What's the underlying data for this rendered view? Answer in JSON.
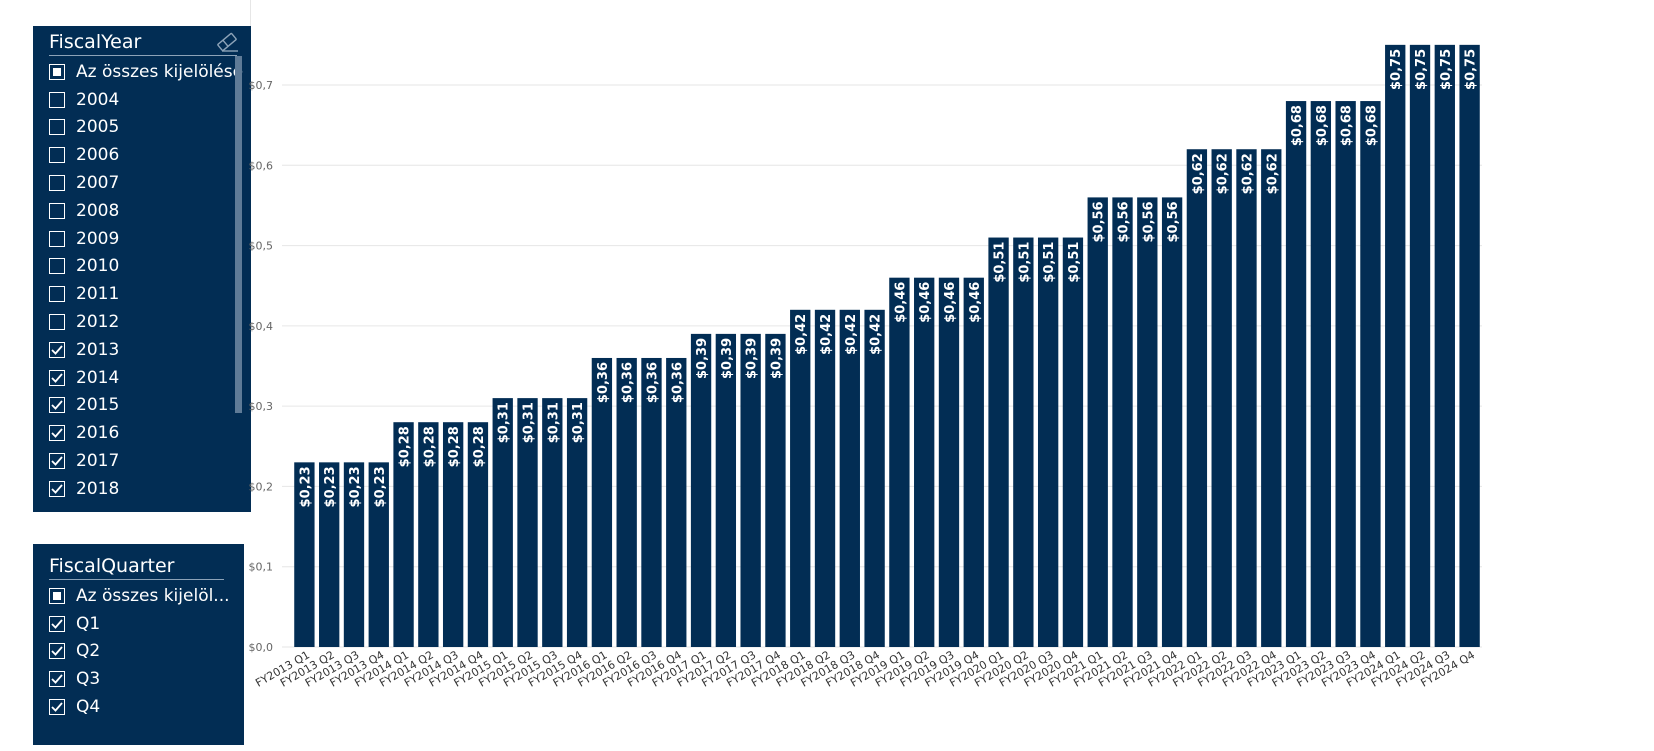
{
  "fiscal_year_slicer": {
    "title": "FiscalYear",
    "items": [
      {
        "label": "Az összes kijelölése",
        "state": "partial"
      },
      {
        "label": "2004",
        "state": "off"
      },
      {
        "label": "2005",
        "state": "off"
      },
      {
        "label": "2006",
        "state": "off"
      },
      {
        "label": "2007",
        "state": "off"
      },
      {
        "label": "2008",
        "state": "off"
      },
      {
        "label": "2009",
        "state": "off"
      },
      {
        "label": "2010",
        "state": "off"
      },
      {
        "label": "2011",
        "state": "off"
      },
      {
        "label": "2012",
        "state": "off"
      },
      {
        "label": "2013",
        "state": "on"
      },
      {
        "label": "2014",
        "state": "on"
      },
      {
        "label": "2015",
        "state": "on"
      },
      {
        "label": "2016",
        "state": "on"
      },
      {
        "label": "2017",
        "state": "on"
      },
      {
        "label": "2018",
        "state": "on"
      }
    ]
  },
  "fiscal_quarter_slicer": {
    "title": "FiscalQuarter",
    "items": [
      {
        "label": "Az összes kijelöl...",
        "state": "partial"
      },
      {
        "label": "Q1",
        "state": "on"
      },
      {
        "label": "Q2",
        "state": "on"
      },
      {
        "label": "Q3",
        "state": "on"
      },
      {
        "label": "Q4",
        "state": "on"
      }
    ]
  },
  "colors": {
    "bar": "#022d54",
    "slicer_bg": "#022d54",
    "grid": "#e6e6e6"
  },
  "chart_data": {
    "type": "bar",
    "title": "",
    "xlabel": "",
    "ylabel": "",
    "ylim": [
      0,
      0.7
    ],
    "yticks": [
      0,
      0.1,
      0.2,
      0.3,
      0.4,
      0.5,
      0.6,
      0.7
    ],
    "ytick_labels": [
      "$0,0",
      "$0,1",
      "$0,2",
      "$0,3",
      "$0,4",
      "$0,5",
      "$0,6",
      "$0,7"
    ],
    "categories": [
      "FY2013 Q1",
      "FY2013 Q2",
      "FY2013 Q3",
      "FY2013 Q4",
      "FY2014 Q1",
      "FY2014 Q2",
      "FY2014 Q3",
      "FY2014 Q4",
      "FY2015 Q1",
      "FY2015 Q2",
      "FY2015 Q3",
      "FY2015 Q4",
      "FY2016 Q1",
      "FY2016 Q2",
      "FY2016 Q3",
      "FY2016 Q4",
      "FY2017 Q1",
      "FY2017 Q2",
      "FY2017 Q3",
      "FY2017 Q4",
      "FY2018 Q1",
      "FY2018 Q2",
      "FY2018 Q3",
      "FY2018 Q4",
      "FY2019 Q1",
      "FY2019 Q2",
      "FY2019 Q3",
      "FY2019 Q4",
      "FY2020 Q1",
      "FY2020 Q2",
      "FY2020 Q3",
      "FY2020 Q4",
      "FY2021 Q1",
      "FY2021 Q2",
      "FY2021 Q3",
      "FY2021 Q4",
      "FY2022 Q1",
      "FY2022 Q2",
      "FY2022 Q3",
      "FY2022 Q4",
      "FY2023 Q1",
      "FY2023 Q2",
      "FY2023 Q3",
      "FY2023 Q4",
      "FY2024 Q1",
      "FY2024 Q2",
      "FY2024 Q3",
      "FY2024 Q4"
    ],
    "values": [
      0.23,
      0.23,
      0.23,
      0.23,
      0.28,
      0.28,
      0.28,
      0.28,
      0.31,
      0.31,
      0.31,
      0.31,
      0.36,
      0.36,
      0.36,
      0.36,
      0.39,
      0.39,
      0.39,
      0.39,
      0.42,
      0.42,
      0.42,
      0.42,
      0.46,
      0.46,
      0.46,
      0.46,
      0.51,
      0.51,
      0.51,
      0.51,
      0.56,
      0.56,
      0.56,
      0.56,
      0.62,
      0.62,
      0.62,
      0.62,
      0.68,
      0.68,
      0.68,
      0.68,
      0.75,
      0.75,
      0.75,
      0.75
    ],
    "data_labels": [
      "$0,23",
      "$0,23",
      "$0,23",
      "$0,23",
      "$0,28",
      "$0,28",
      "$0,28",
      "$0,28",
      "$0,31",
      "$0,31",
      "$0,31",
      "$0,31",
      "$0,36",
      "$0,36",
      "$0,36",
      "$0,36",
      "$0,39",
      "$0,39",
      "$0,39",
      "$0,39",
      "$0,42",
      "$0,42",
      "$0,42",
      "$0,42",
      "$0,46",
      "$0,46",
      "$0,46",
      "$0,46",
      "$0,51",
      "$0,51",
      "$0,51",
      "$0,51",
      "$0,56",
      "$0,56",
      "$0,56",
      "$0,56",
      "$0,62",
      "$0,62",
      "$0,62",
      "$0,62",
      "$0,68",
      "$0,68",
      "$0,68",
      "$0,68",
      "$0,75",
      "$0,75",
      "$0,75",
      "$0,75"
    ],
    "grid": true,
    "legend": "none"
  }
}
